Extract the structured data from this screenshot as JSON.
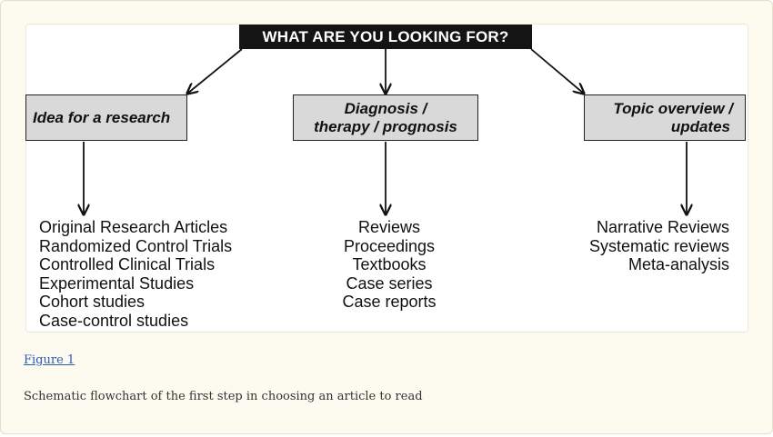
{
  "diagram": {
    "root_label": "WHAT ARE YOU LOOKING FOR?",
    "categories": [
      {
        "lines": [
          "Idea for a research"
        ],
        "items": [
          "Original Research Articles",
          "Randomized Control Trials",
          "Controlled Clinical Trials",
          "Experimental Studies",
          "Cohort studies",
          "Case-control studies"
        ]
      },
      {
        "lines": [
          "Diagnosis /",
          "therapy / prognosis"
        ],
        "items": [
          "Reviews",
          "Proceedings",
          "Textbooks",
          "Case series",
          "Case reports"
        ]
      },
      {
        "lines": [
          "Topic overview /",
          "updates"
        ],
        "items": [
          "Narrative Reviews",
          "Systematic reviews",
          "Meta-analysis"
        ]
      }
    ]
  },
  "figure": {
    "link_label": "Figure 1",
    "caption": "Schematic flowchart of the first step in choosing an article to read"
  },
  "colors": {
    "panel_bg": "#fdfbf0",
    "root_bg": "#141414",
    "category_bg": "#d9d9d9",
    "link": "#2a5db0"
  }
}
